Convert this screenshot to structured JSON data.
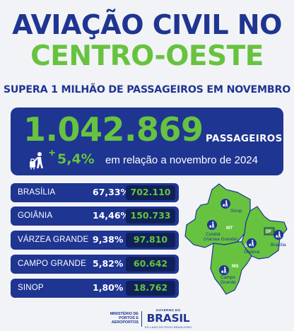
{
  "headline": {
    "line1": "AVIAÇÃO CIVIL NO",
    "line2": "CENTRO-OESTE"
  },
  "subtitle": "SUPERA 1 MILHÃO DE PASSAGEIROS EM NOVEMBRO",
  "total": {
    "number": "1.042.869",
    "unit": "PASSAGEIROS",
    "icon": "traveler-with-luggage-icon",
    "plus": "+",
    "growth": "5,4%",
    "growth_text": "em relação a novembro de 2024"
  },
  "cities": [
    {
      "name": "BRASÍLIA",
      "pct": "67,33%",
      "value": "702.110"
    },
    {
      "name": "GOIÂNIA",
      "pct": "14,46%",
      "value": "150.733"
    },
    {
      "name": "VÁRZEA GRANDE",
      "pct": "9,38%",
      "value": "97.810"
    },
    {
      "name": "CAMPO GRANDE",
      "pct": "5,82%",
      "value": "60.642"
    },
    {
      "name": "SINOP",
      "pct": "1,80%",
      "value": "18.762"
    }
  ],
  "map": {
    "states": {
      "mt": "MT",
      "go": "GO",
      "ms": "MS",
      "df": "DF"
    },
    "markers": {
      "sinop": "Sinop",
      "cuiaba_1": "Cuiabá",
      "cuiaba_2": "(Várzea Grande)",
      "goiania": "Goiânia",
      "brasilia": "Brasília",
      "campo_grande_1": "Campo",
      "campo_grande_2": "Grande"
    },
    "colors": {
      "land": "#67c33f",
      "border": "#1f3592",
      "dark_land": "#4e9a2c"
    },
    "marker_icon": "traveler-pin-icon"
  },
  "footer": {
    "ministry": [
      "MINISTÉRIO DE",
      "PORTOS E",
      "AEROPORTOS"
    ],
    "gov_top": "GOVERNO DO",
    "brasil": "BRASIL",
    "gov_bottom": "DO LADO DO POVO BRASILEIRO"
  },
  "colors": {
    "navy": "#1f3592",
    "green": "#67c33f",
    "background": "#f2f3f6",
    "value_box": "#0f2158"
  }
}
